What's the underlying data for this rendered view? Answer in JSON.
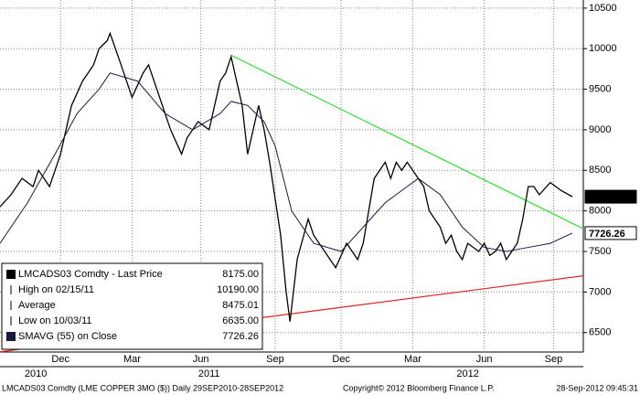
{
  "chart_data": {
    "type": "line",
    "xlim": [
      0,
      106
    ],
    "ylim": [
      6260,
      10600
    ],
    "yticks": [
      6500,
      7000,
      7500,
      8000,
      8500,
      9000,
      9500,
      10000,
      10500
    ],
    "xticks": [
      {
        "value": 11,
        "label": "Dec"
      },
      {
        "value": 24,
        "label": "Mar"
      },
      {
        "value": 36.5,
        "label": "Jun"
      },
      {
        "value": 50,
        "label": "Sep"
      },
      {
        "value": 62,
        "label": "Dec"
      },
      {
        "value": 75,
        "label": "Mar"
      },
      {
        "value": 88,
        "label": "Jun"
      },
      {
        "value": 100.6,
        "label": "Sep"
      }
    ],
    "year_ticks": [
      {
        "value": 6.5,
        "label": "2010"
      },
      {
        "value": 38,
        "label": "2011"
      },
      {
        "value": 85,
        "label": "2012"
      }
    ],
    "grid": true,
    "series": [
      {
        "name": "LMCADS03 Comdty - Last Price",
        "color": "#000000",
        "x": [
          0,
          2,
          4,
          6,
          7,
          9,
          11,
          12,
          13,
          15,
          17,
          18,
          19.5,
          20,
          22,
          24,
          26,
          27,
          29,
          31,
          33,
          34,
          36,
          38,
          39,
          40,
          41,
          42,
          44,
          45,
          46,
          47,
          48,
          49,
          51,
          52,
          52.7,
          54,
          56,
          57,
          59,
          60,
          61,
          63,
          64,
          65,
          66,
          67,
          68,
          69,
          70,
          71,
          72,
          73,
          74,
          75,
          76,
          77,
          78,
          80,
          81,
          82,
          83,
          84,
          85,
          87,
          88,
          89,
          90,
          91,
          92,
          93,
          94,
          95,
          96,
          97,
          98,
          100,
          102,
          104
        ],
        "values": [
          8050,
          8200,
          8400,
          8300,
          8500,
          8300,
          8700,
          9000,
          9300,
          9600,
          9800,
          10000,
          10100,
          10190,
          9800,
          9400,
          9700,
          9800,
          9400,
          9000,
          8700,
          8900,
          9100,
          9000,
          9300,
          9600,
          9700,
          9900,
          9300,
          8700,
          9000,
          9300,
          9000,
          8600,
          7700,
          7000,
          6635,
          7400,
          7900,
          7700,
          7500,
          7400,
          7300,
          7600,
          7500,
          7400,
          7600,
          8000,
          8400,
          8500,
          8600,
          8400,
          8600,
          8500,
          8600,
          8500,
          8400,
          8300,
          8000,
          7800,
          7600,
          7700,
          7500,
          7400,
          7600,
          7500,
          7600,
          7450,
          7500,
          7600,
          7400,
          7500,
          7600,
          7900,
          8300,
          8300,
          8200,
          8350,
          8250,
          8175
        ]
      },
      {
        "name": "SMAVG (55) on Close",
        "color": "#1a1a40",
        "x": [
          0,
          5,
          10,
          14,
          18,
          20,
          25,
          30,
          35,
          40,
          42,
          45,
          48,
          50,
          53,
          57,
          62,
          66,
          70,
          74,
          76,
          80,
          84,
          88,
          92,
          96,
          100,
          104
        ],
        "values": [
          7600,
          8100,
          8700,
          9200,
          9500,
          9700,
          9600,
          9200,
          9000,
          9200,
          9350,
          9300,
          9100,
          8800,
          8000,
          7600,
          7500,
          7800,
          8100,
          8300,
          8400,
          8200,
          7800,
          7550,
          7500,
          7550,
          7600,
          7726.26
        ]
      }
    ],
    "trend_lines": [
      {
        "color": "#33dd33",
        "x": [
          42,
          106
        ],
        "values": [
          9920,
          7780
        ]
      },
      {
        "color": "#dd2222",
        "x": [
          0,
          106
        ],
        "values": [
          6263,
          7200
        ]
      }
    ],
    "legend": [
      {
        "label": "LMCADS03 Comdty - Last Price",
        "value": "8175.00"
      },
      {
        "label": "High on 02/15/11",
        "value": "10190.00"
      },
      {
        "label": "Average",
        "value": "8475.01"
      },
      {
        "label": "Low on 10/03/11",
        "value": "6635.00"
      },
      {
        "label": "SMAVG (55) on Close",
        "value": "7726.26"
      }
    ],
    "badges": [
      {
        "value": 8175,
        "label": "8175.00"
      },
      {
        "value": 7726.26,
        "label": "7726.26"
      }
    ],
    "footer": {
      "left": "LMCADS03 Comdty (LME COPPER   3MO ($))  Daily 29SEP2010-28SEP2012",
      "center": "Copyright© 2012 Bloomberg Finance L.P.",
      "right": "28-Sep-2012 09:45:31"
    }
  }
}
